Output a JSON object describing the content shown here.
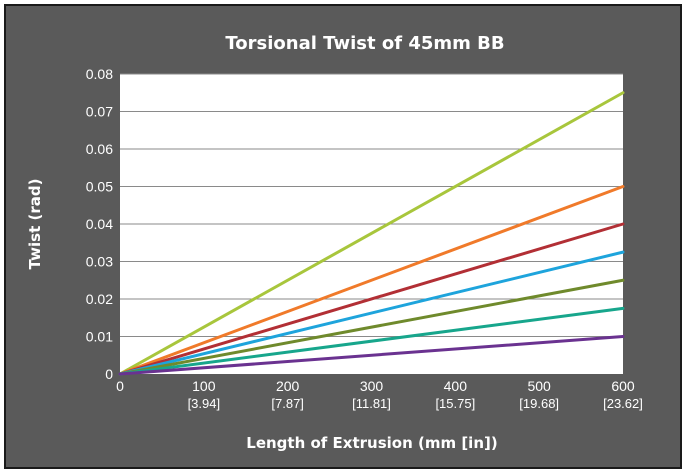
{
  "chart_data": {
    "type": "line",
    "title": "Torsional Twist of 45mm BB",
    "xlabel": "Length of Extrusion (mm [in])",
    "ylabel": "Twist (rad)",
    "xlim": [
      0,
      600
    ],
    "ylim": [
      0,
      0.08
    ],
    "x_ticks": [
      {
        "value": 0,
        "label": "0",
        "sublabel": ""
      },
      {
        "value": 100,
        "label": "100",
        "sublabel": "[3.94]"
      },
      {
        "value": 200,
        "label": "200",
        "sublabel": "[7.87]"
      },
      {
        "value": 300,
        "label": "300",
        "sublabel": "[11.81]"
      },
      {
        "value": 400,
        "label": "400",
        "sublabel": "[15.75]"
      },
      {
        "value": 500,
        "label": "500",
        "sublabel": "[19.68]"
      },
      {
        "value": 600,
        "label": "600",
        "sublabel": "[23.62]"
      }
    ],
    "y_ticks": [
      {
        "value": 0,
        "label": "0"
      },
      {
        "value": 0.01,
        "label": "0.01"
      },
      {
        "value": 0.02,
        "label": "0.02"
      },
      {
        "value": 0.03,
        "label": "0.03"
      },
      {
        "value": 0.04,
        "label": "0.04"
      },
      {
        "value": 0.05,
        "label": "0.05"
      },
      {
        "value": 0.06,
        "label": "0.06"
      },
      {
        "value": 0.07,
        "label": "0.07"
      },
      {
        "value": 0.08,
        "label": "0.08"
      }
    ],
    "grid": "horizontal",
    "legend": "none",
    "series": [
      {
        "color": "#a8c63c",
        "x": [
          0,
          600
        ],
        "y": [
          0,
          0.075
        ]
      },
      {
        "color": "#f07a2a",
        "x": [
          0,
          600
        ],
        "y": [
          0,
          0.05
        ]
      },
      {
        "color": "#b22f35",
        "x": [
          0,
          600
        ],
        "y": [
          0,
          0.04
        ]
      },
      {
        "color": "#1ea4dc",
        "x": [
          0,
          600
        ],
        "y": [
          0,
          0.0325
        ]
      },
      {
        "color": "#6f8a2c",
        "x": [
          0,
          600
        ],
        "y": [
          0,
          0.025
        ]
      },
      {
        "color": "#17a68c",
        "x": [
          0,
          600
        ],
        "y": [
          0,
          0.0175
        ]
      },
      {
        "color": "#6a3290",
        "x": [
          0,
          600
        ],
        "y": [
          0,
          0.01
        ]
      }
    ]
  },
  "colors": {
    "frame_background": "#5a5a5a",
    "plot_background": "#ffffff",
    "gridline": "#8a8a8a"
  }
}
